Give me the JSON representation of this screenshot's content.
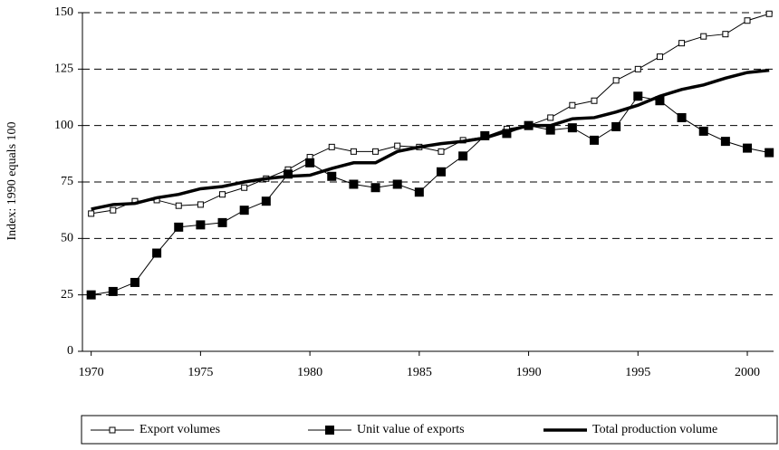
{
  "chart_data": {
    "type": "line",
    "y_label": "Index: 1990 equals 100",
    "x": [
      1970,
      1971,
      1972,
      1973,
      1974,
      1975,
      1976,
      1977,
      1978,
      1979,
      1980,
      1981,
      1982,
      1983,
      1984,
      1985,
      1986,
      1987,
      1988,
      1989,
      1990,
      1991,
      1992,
      1993,
      1994,
      1995,
      1996,
      1997,
      1998,
      1999,
      2000,
      2001
    ],
    "series": [
      {
        "name": "Export volumes",
        "color": "#000000",
        "marker": "open-square",
        "line_width": 1,
        "values": [
          61,
          62.5,
          66.5,
          67,
          64.5,
          65,
          69.5,
          72.5,
          76.5,
          80.5,
          86,
          90.5,
          88.5,
          88.5,
          91,
          90.5,
          88.5,
          93.5,
          95,
          98.5,
          100,
          103.5,
          109,
          111,
          120,
          125,
          130.5,
          136.5,
          139.5,
          140.5,
          146.5,
          149.5
        ]
      },
      {
        "name": "Unit value of exports",
        "color": "#000000",
        "marker": "filled-square",
        "line_width": 1,
        "values": [
          25,
          26.5,
          30.5,
          43.5,
          55,
          56,
          57,
          62.5,
          66.5,
          78.5,
          83.5,
          77.5,
          74,
          72.5,
          74,
          70.5,
          79.5,
          86.5,
          95.5,
          96.5,
          100,
          98,
          99,
          93.5,
          99.5,
          113,
          111,
          103.5,
          97.5,
          93,
          90,
          88
        ]
      },
      {
        "name": "Total production volume",
        "color": "#000000",
        "marker": "none",
        "line_width": 3.5,
        "values": [
          63,
          65,
          65.5,
          68,
          69.5,
          72,
          73,
          75,
          76.5,
          77.5,
          78,
          81,
          83.5,
          83.5,
          88.5,
          90.5,
          92,
          93,
          94.5,
          97.5,
          100,
          100,
          103,
          103.5,
          106,
          109,
          113,
          116,
          118,
          121,
          123.5,
          124.5
        ]
      }
    ],
    "xlim": [
      1969.6,
      2001.2
    ],
    "xticks": [
      1970,
      1975,
      1980,
      1985,
      1990,
      1995,
      2000
    ],
    "ylim": [
      0,
      150
    ],
    "yticks": [
      0,
      25,
      50,
      75,
      100,
      125,
      150
    ],
    "grid": true,
    "grid_style": "dashed",
    "legend": "bottom"
  }
}
